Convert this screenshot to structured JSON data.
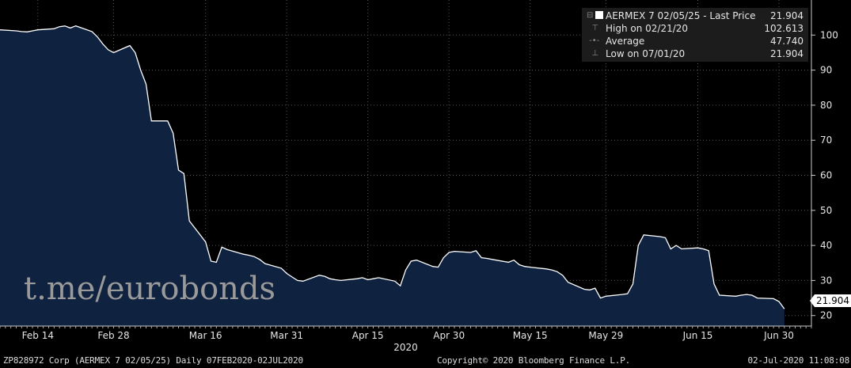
{
  "chart_data": {
    "type": "area",
    "x": [
      "2020-02-07",
      "2020-02-10",
      "2020-02-11",
      "2020-02-12",
      "2020-02-13",
      "2020-02-14",
      "2020-02-17",
      "2020-02-18",
      "2020-02-19",
      "2020-02-20",
      "2020-02-21",
      "2020-02-24",
      "2020-02-25",
      "2020-02-26",
      "2020-02-27",
      "2020-02-28",
      "2020-03-02",
      "2020-03-03",
      "2020-03-04",
      "2020-03-05",
      "2020-03-06",
      "2020-03-09",
      "2020-03-10",
      "2020-03-11",
      "2020-03-12",
      "2020-03-13",
      "2020-03-16",
      "2020-03-17",
      "2020-03-18",
      "2020-03-19",
      "2020-03-20",
      "2020-03-23",
      "2020-03-24",
      "2020-03-25",
      "2020-03-26",
      "2020-03-27",
      "2020-03-30",
      "2020-03-31",
      "2020-04-01",
      "2020-04-02",
      "2020-04-03",
      "2020-04-06",
      "2020-04-07",
      "2020-04-08",
      "2020-04-09",
      "2020-04-10",
      "2020-04-13",
      "2020-04-14",
      "2020-04-15",
      "2020-04-16",
      "2020-04-17",
      "2020-04-20",
      "2020-04-21",
      "2020-04-22",
      "2020-04-23",
      "2020-04-24",
      "2020-04-27",
      "2020-04-28",
      "2020-04-29",
      "2020-04-30",
      "2020-05-01",
      "2020-05-04",
      "2020-05-05",
      "2020-05-06",
      "2020-05-07",
      "2020-05-08",
      "2020-05-11",
      "2020-05-12",
      "2020-05-13",
      "2020-05-14",
      "2020-05-15",
      "2020-05-18",
      "2020-05-19",
      "2020-05-20",
      "2020-05-21",
      "2020-05-22",
      "2020-05-25",
      "2020-05-26",
      "2020-05-27",
      "2020-05-28",
      "2020-05-29",
      "2020-06-01",
      "2020-06-02",
      "2020-06-03",
      "2020-06-04",
      "2020-06-05",
      "2020-06-08",
      "2020-06-09",
      "2020-06-10",
      "2020-06-11",
      "2020-06-12",
      "2020-06-15",
      "2020-06-16",
      "2020-06-17",
      "2020-06-18",
      "2020-06-19",
      "2020-06-22",
      "2020-06-23",
      "2020-06-24",
      "2020-06-25",
      "2020-06-26",
      "2020-06-29",
      "2020-06-30",
      "2020-07-01"
    ],
    "values": [
      101.5,
      101.2,
      101.0,
      100.9,
      101.2,
      101.5,
      101.8,
      102.4,
      102.6,
      102.0,
      102.613,
      101.0,
      99.5,
      97.5,
      95.8,
      95.0,
      97.0,
      95.0,
      90.0,
      86.0,
      75.5,
      75.5,
      72.0,
      61.5,
      60.5,
      47.0,
      41.0,
      35.5,
      35.2,
      39.5,
      38.8,
      37.5,
      37.2,
      36.8,
      36.0,
      34.8,
      33.5,
      32.0,
      31.0,
      30.0,
      29.8,
      31.5,
      31.2,
      30.5,
      30.2,
      30.0,
      30.5,
      30.8,
      30.2,
      30.5,
      30.8,
      29.8,
      28.5,
      33.0,
      35.5,
      35.8,
      34.0,
      33.8,
      36.5,
      38.0,
      38.3,
      38.0,
      38.5,
      36.5,
      36.3,
      36.0,
      35.2,
      35.8,
      34.5,
      34.0,
      33.8,
      33.3,
      33.0,
      32.5,
      31.5,
      29.5,
      27.5,
      27.3,
      27.8,
      25.0,
      25.5,
      26.0,
      26.2,
      29.0,
      40.0,
      43.0,
      42.5,
      42.2,
      39.0,
      40.0,
      39.0,
      39.3,
      39.0,
      38.5,
      29.0,
      25.8,
      25.5,
      25.8,
      26.0,
      25.8,
      25.0,
      24.8,
      24.0,
      21.904
    ],
    "x_ticks": [
      {
        "label": "Feb 14",
        "date": "2020-02-14"
      },
      {
        "label": "Feb 28",
        "date": "2020-02-28"
      },
      {
        "label": "Mar 16",
        "date": "2020-03-16"
      },
      {
        "label": "Mar 31",
        "date": "2020-03-31"
      },
      {
        "label": "Apr 15",
        "date": "2020-04-15"
      },
      {
        "label": "Apr 30",
        "date": "2020-04-30"
      },
      {
        "label": "May 15",
        "date": "2020-05-15"
      },
      {
        "label": "May 29",
        "date": "2020-05-29"
      },
      {
        "label": "Jun 15",
        "date": "2020-06-15"
      },
      {
        "label": "Jun 30",
        "date": "2020-06-30"
      }
    ],
    "year_label": "2020",
    "y_ticks": [
      20,
      30,
      40,
      50,
      60,
      70,
      80,
      90,
      100
    ],
    "ylim": [
      17,
      110
    ],
    "xlim": [
      "2020-02-07",
      "2020-07-06"
    ],
    "grid": true,
    "colors": {
      "fill": "#0f2240",
      "line": "#ffffff",
      "grid": "#555555",
      "background": "#000000"
    },
    "last_value_label": "21.904"
  },
  "legend": {
    "title": "AERMEX 7 02/05/25 - Last Price",
    "title_value": "21.904",
    "high_label": "High on 02/21/20",
    "high_value": "102.613",
    "avg_label": "Average",
    "avg_value": "47.740",
    "low_label": "Low on 07/01/20",
    "low_value": "21.904"
  },
  "footer": {
    "left": "ZP828972 Corp (AERMEX 7 02/05/25)  Daily 07FEB2020-02JUL2020",
    "center": "Copyright© 2020 Bloomberg Finance L.P.",
    "right": "02-Jul-2020 11:08:08"
  },
  "watermark": "t.me/eurobonds"
}
